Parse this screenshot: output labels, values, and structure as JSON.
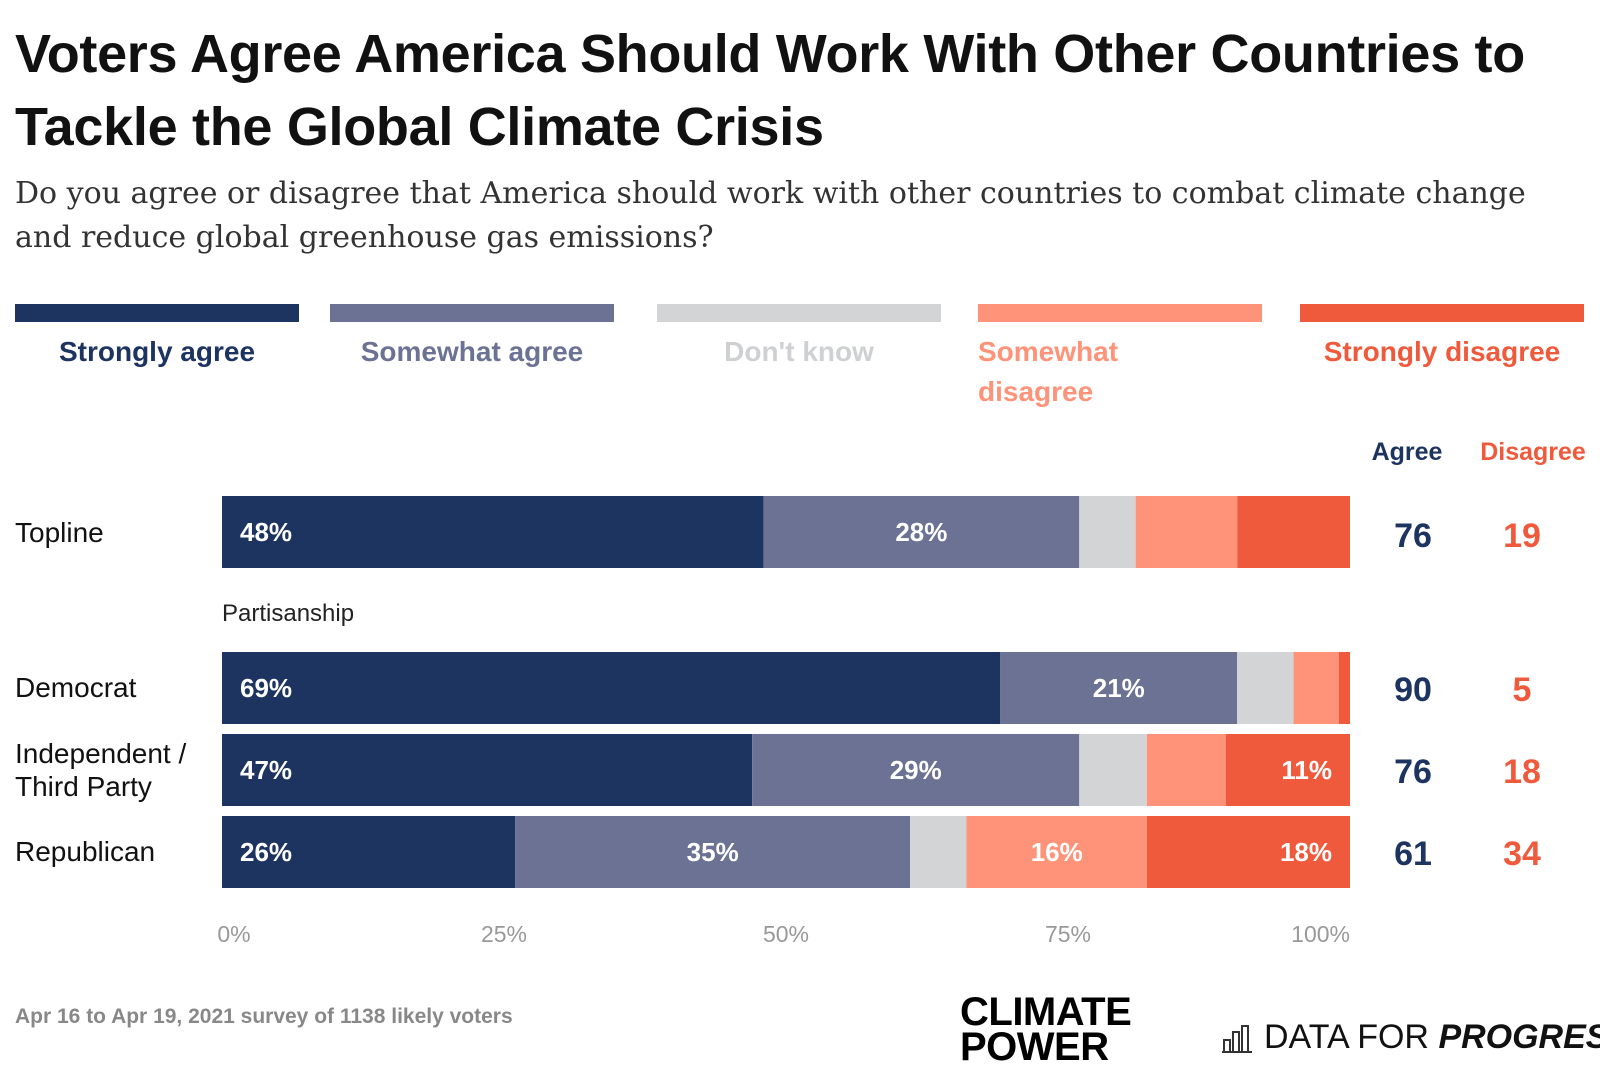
{
  "title": "Voters Agree America Should Work With Other Countries to Tackle the Global Climate Crisis",
  "subtitle": "Do you agree or disagree that America should work with other countries to combat climate change and reduce global greenhouse gas emissions?",
  "legend": [
    {
      "label": "Strongly agree",
      "color": "#1d3461"
    },
    {
      "label": "Somewhat agree",
      "color": "#6b7294"
    },
    {
      "label": "Don't know",
      "color": "#d3d4d6"
    },
    {
      "label": "Somewhat disagree",
      "color": "#fe9379"
    },
    {
      "label": "Strongly disagree",
      "color": "#f05a3c"
    }
  ],
  "columns": {
    "agree": "Agree",
    "disagree": "Disagree",
    "agree_color": "#1d3461",
    "disagree_color": "#f05a3c"
  },
  "group_label": "Partisanship",
  "chart_data": {
    "type": "bar",
    "orientation": "horizontal",
    "stacked": true,
    "categories": [
      "Topline",
      "Democrat",
      "Independent / Third Party",
      "Republican"
    ],
    "series": [
      {
        "name": "Strongly agree",
        "values": [
          48,
          69,
          47,
          26
        ]
      },
      {
        "name": "Somewhat agree",
        "values": [
          28,
          21,
          29,
          35
        ]
      },
      {
        "name": "Don't know",
        "values": [
          5,
          5,
          6,
          5
        ]
      },
      {
        "name": "Somewhat disagree",
        "values": [
          9,
          4,
          7,
          16
        ]
      },
      {
        "name": "Strongly disagree",
        "values": [
          10,
          1,
          11,
          18
        ]
      }
    ],
    "data_labels": [
      [
        "48%",
        "28%",
        "",
        "",
        ""
      ],
      [
        "69%",
        "21%",
        "",
        "",
        ""
      ],
      [
        "47%",
        "29%",
        "",
        "",
        "11%"
      ],
      [
        "26%",
        "35%",
        "",
        "16%",
        "18%"
      ]
    ],
    "agree_totals": [
      76,
      90,
      76,
      61
    ],
    "disagree_totals": [
      19,
      5,
      18,
      34
    ],
    "x_ticks": [
      "0%",
      "25%",
      "50%",
      "75%",
      "100%"
    ],
    "xlim": [
      0,
      100
    ],
    "grid": false,
    "legend_position": "top"
  },
  "footer": {
    "note": "Apr 16 to Apr 19, 2021 survey of 1138 likely voters",
    "logo_climate": "CLIMATE",
    "logo_power": "POWER",
    "logo_dfp_a": "DATA FOR",
    "logo_dfp_b": "PROGRESS"
  }
}
